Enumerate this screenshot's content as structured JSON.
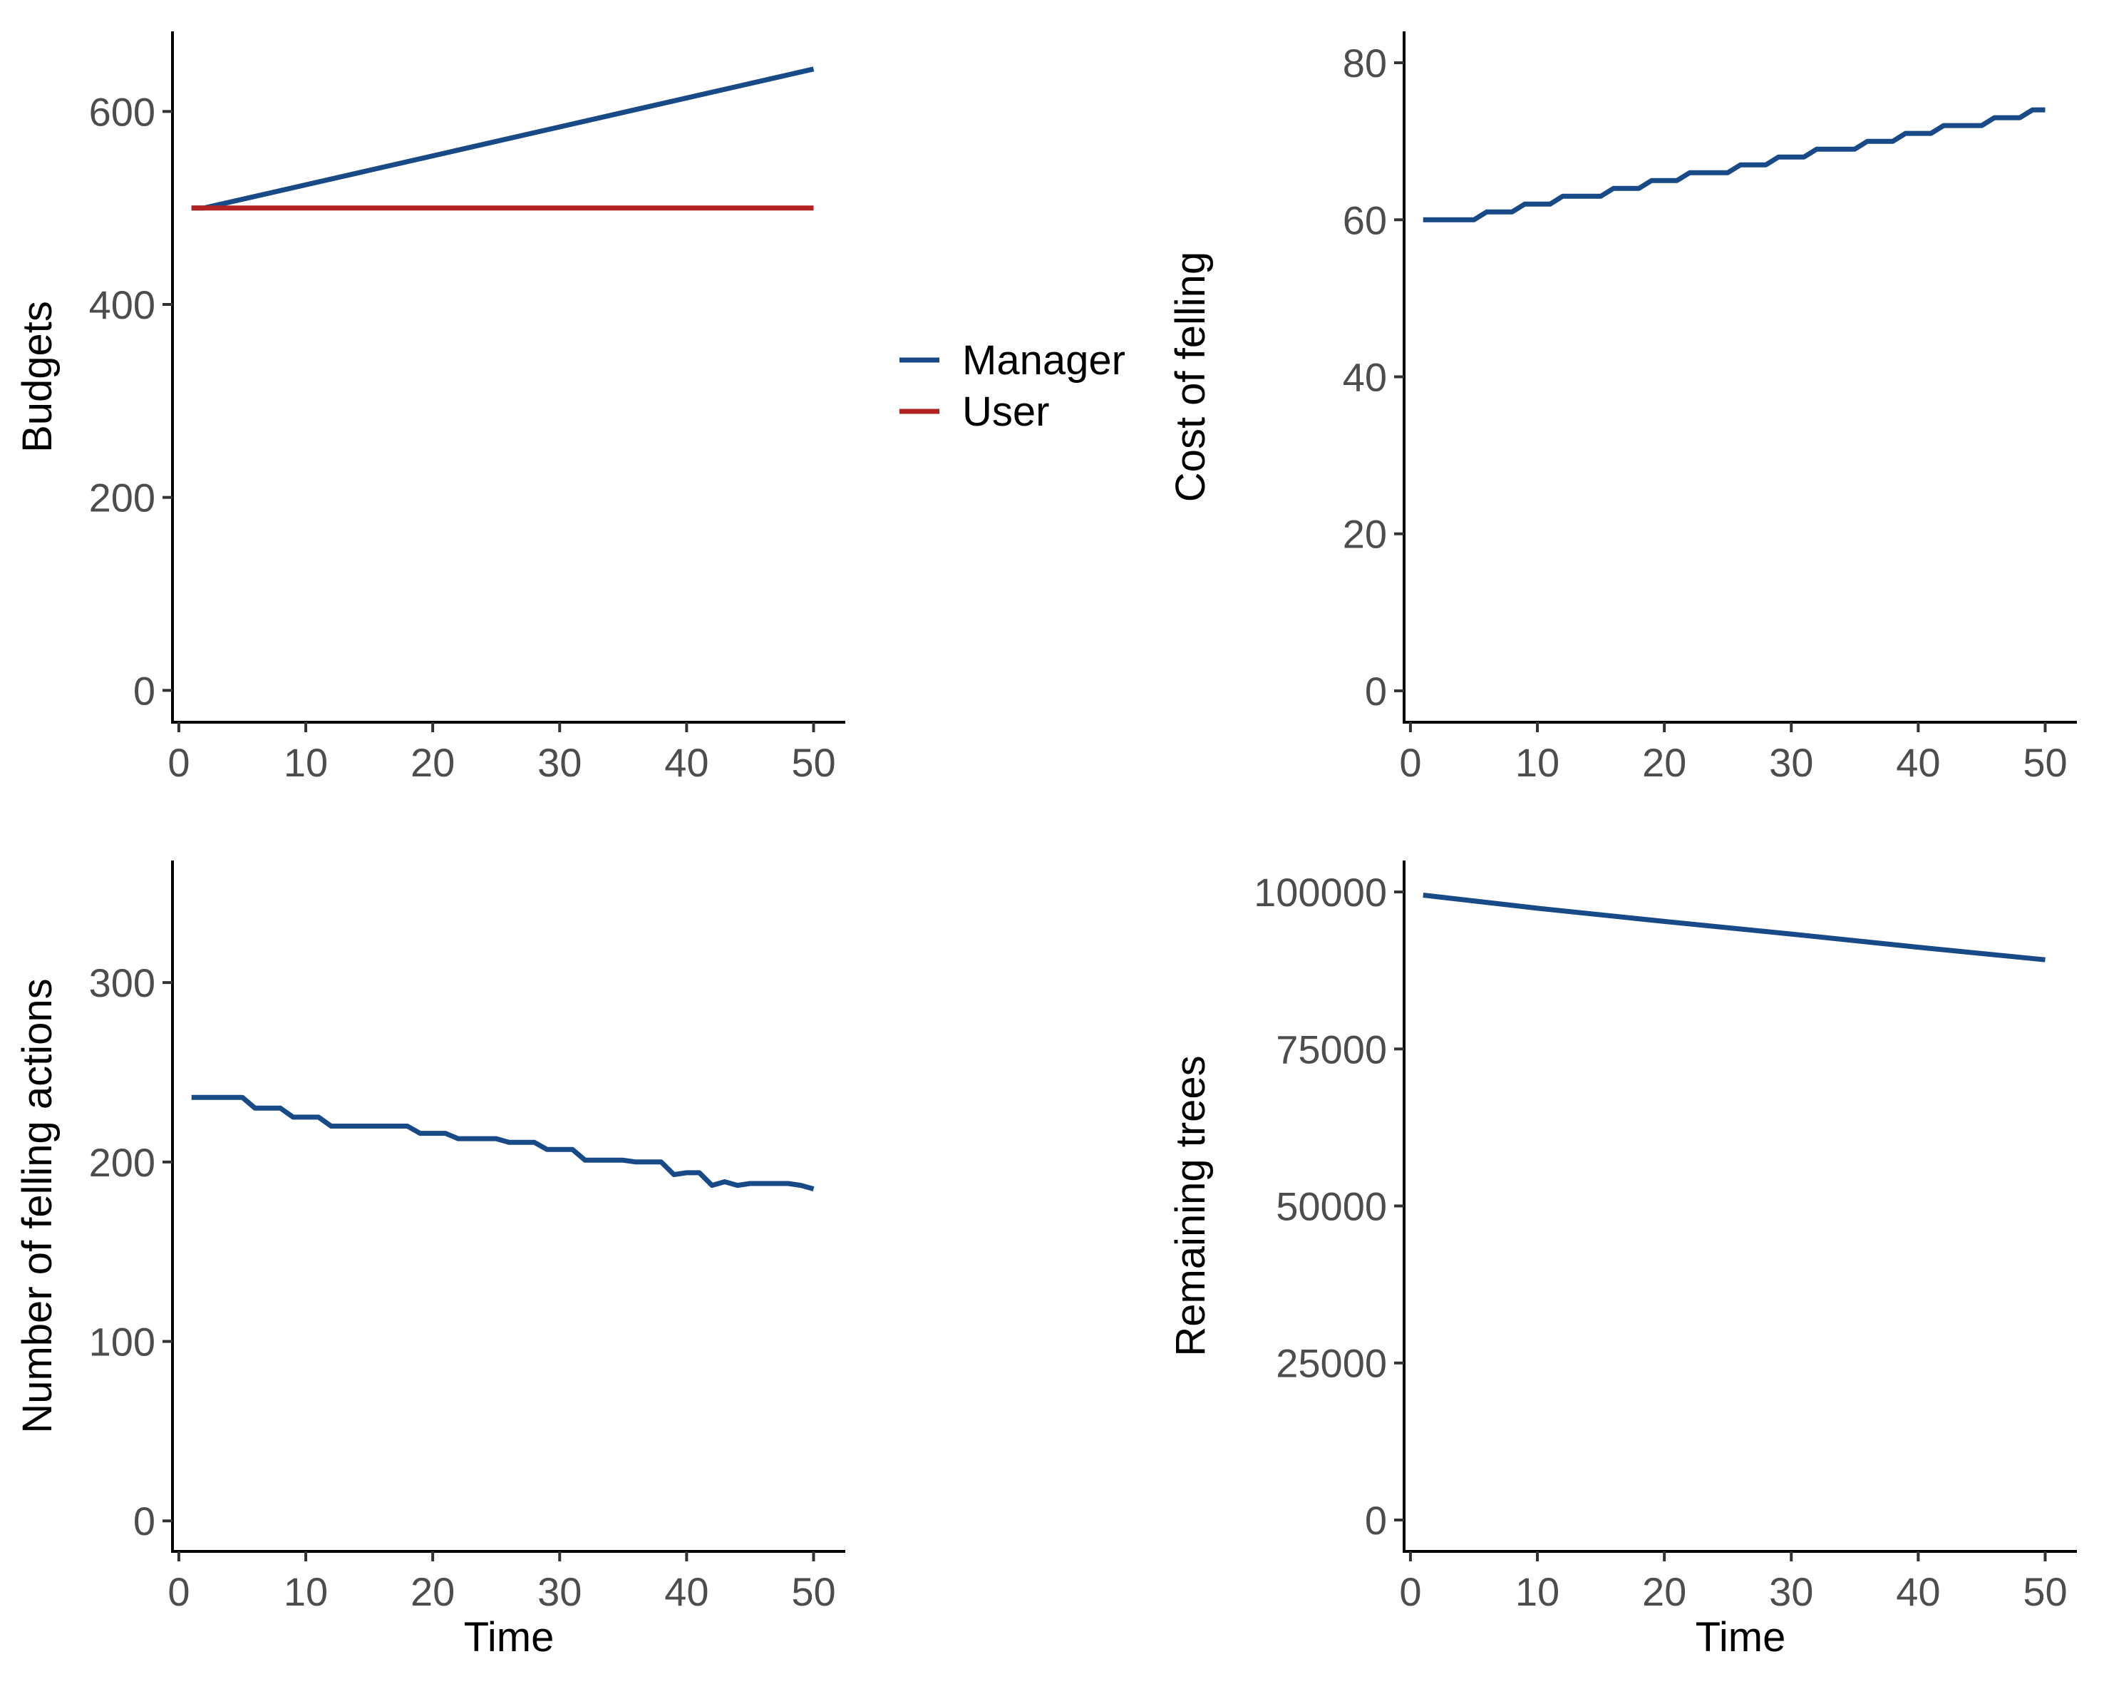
{
  "colors": {
    "manager": "#174a86",
    "user": "#b22222"
  },
  "legend": {
    "items": [
      {
        "label": "Manager",
        "color": "#174a86"
      },
      {
        "label": "User",
        "color": "#b22222"
      }
    ]
  },
  "chart_data": [
    {
      "type": "line",
      "title": "",
      "xlabel": "",
      "ylabel": "Budgets",
      "xlim": [
        -0.5,
        52.5
      ],
      "ylim": [
        -33,
        683
      ],
      "xticks": [
        0,
        10,
        20,
        30,
        40,
        50
      ],
      "yticks": [
        0,
        200,
        400,
        600
      ],
      "grid": false,
      "series": [
        {
          "name": "Manager",
          "color": "#174a86",
          "x": [
            1,
            2,
            50
          ],
          "y": [
            500,
            500,
            644
          ]
        },
        {
          "name": "User",
          "color": "#b22222",
          "x": [
            1,
            50
          ],
          "y": [
            500,
            500
          ]
        }
      ]
    },
    {
      "type": "line",
      "title": "",
      "xlabel": "",
      "ylabel": "Cost of felling",
      "xlim": [
        -0.5,
        52.5
      ],
      "ylim": [
        -4,
        84
      ],
      "xticks": [
        0,
        10,
        20,
        30,
        40,
        50
      ],
      "yticks": [
        0,
        20,
        40,
        60,
        80
      ],
      "grid": false,
      "series": [
        {
          "name": "Manager",
          "color": "#174a86",
          "x": [
            1,
            2,
            3,
            4,
            5,
            6,
            7,
            8,
            9,
            10,
            11,
            12,
            13,
            14,
            15,
            16,
            17,
            18,
            19,
            20,
            21,
            22,
            23,
            24,
            25,
            26,
            27,
            28,
            29,
            30,
            31,
            32,
            33,
            34,
            35,
            36,
            37,
            38,
            39,
            40,
            41,
            42,
            43,
            44,
            45,
            46,
            47,
            48,
            49,
            50
          ],
          "y": [
            60,
            60,
            60,
            60,
            60,
            61,
            61,
            61,
            62,
            62,
            62,
            63,
            63,
            63,
            63,
            64,
            64,
            64,
            65,
            65,
            65,
            66,
            66,
            66,
            66,
            67,
            67,
            67,
            68,
            68,
            68,
            69,
            69,
            69,
            69,
            70,
            70,
            70,
            71,
            71,
            71,
            72,
            72,
            72,
            72,
            73,
            73,
            73,
            74,
            74
          ]
        }
      ]
    },
    {
      "type": "line",
      "title": "",
      "xlabel": "Time",
      "ylabel": "Number of felling actions",
      "xlim": [
        -0.5,
        52.5
      ],
      "ylim": [
        -17,
        368
      ],
      "xticks": [
        0,
        10,
        20,
        30,
        40,
        50
      ],
      "yticks": [
        0,
        100,
        200,
        300
      ],
      "grid": false,
      "series": [
        {
          "name": "Manager",
          "color": "#174a86",
          "x": [
            1,
            2,
            3,
            4,
            5,
            6,
            7,
            8,
            9,
            10,
            11,
            12,
            13,
            14,
            15,
            16,
            17,
            18,
            19,
            20,
            21,
            22,
            23,
            24,
            25,
            26,
            27,
            28,
            29,
            30,
            31,
            32,
            33,
            34,
            35,
            36,
            37,
            38,
            39,
            40,
            41,
            42,
            43,
            44,
            45,
            46,
            47,
            48,
            49,
            50
          ],
          "y": [
            236,
            236,
            236,
            236,
            236,
            230,
            230,
            230,
            225,
            225,
            225,
            220,
            220,
            220,
            220,
            220,
            220,
            220,
            216,
            216,
            216,
            213,
            213,
            213,
            213,
            211,
            211,
            211,
            207,
            207,
            207,
            201,
            201,
            201,
            201,
            200,
            200,
            200,
            193,
            194,
            194,
            187,
            189,
            187,
            188,
            188,
            188,
            188,
            187,
            185
          ]
        }
      ]
    },
    {
      "type": "line",
      "title": "",
      "xlabel": "Time",
      "ylabel": "Remaining trees",
      "xlim": [
        -0.5,
        52.5
      ],
      "ylim": [
        -5000,
        105000
      ],
      "xticks": [
        0,
        10,
        20,
        30,
        40,
        50
      ],
      "yticks": [
        0,
        25000,
        50000,
        75000,
        100000
      ],
      "grid": false,
      "series": [
        {
          "name": "Manager",
          "color": "#174a86",
          "x": [
            1,
            10,
            20,
            30,
            40,
            50
          ],
          "y": [
            99500,
            97400,
            95300,
            93300,
            91200,
            89200
          ]
        }
      ]
    }
  ]
}
